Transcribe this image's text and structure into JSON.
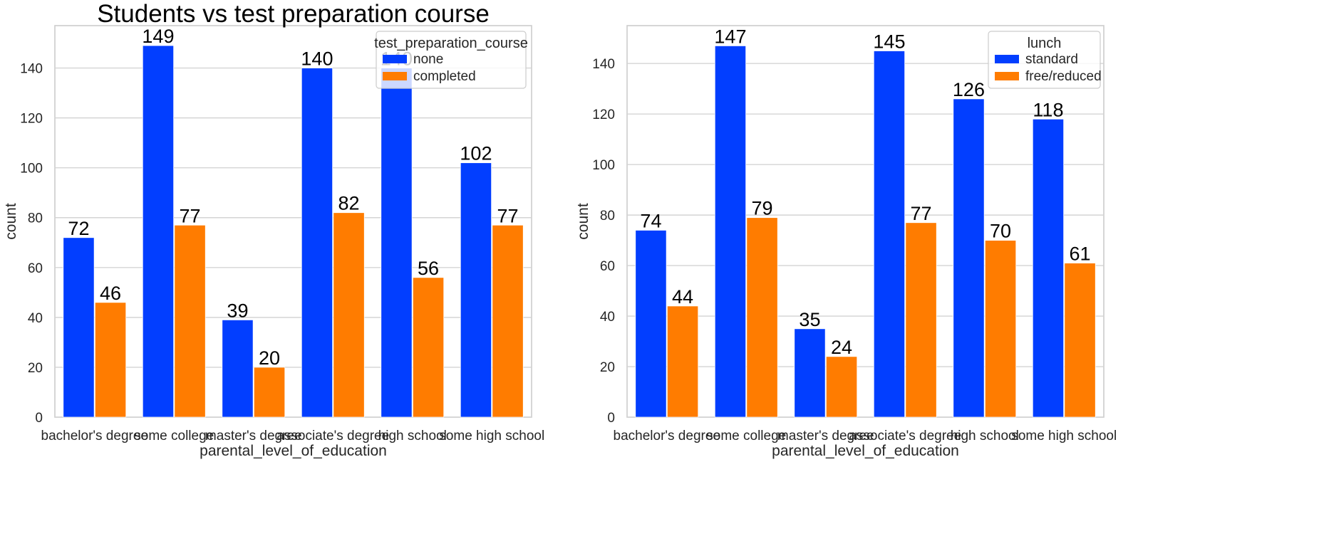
{
  "chart_data": [
    {
      "type": "bar",
      "title": "Students vs test preparation course",
      "xlabel": "parental_level_of_education",
      "ylabel": "count",
      "ylim": [
        0,
        157
      ],
      "yticks": [
        0,
        20,
        40,
        60,
        80,
        100,
        120,
        140
      ],
      "grid": true,
      "legend_title": "test_preparation_course",
      "legend_position": "top-right",
      "categories": [
        "bachelor's degree",
        "some college",
        "master's degree",
        "associate's degree",
        "high school",
        "some high school"
      ],
      "series": [
        {
          "name": "none",
          "color": "#023eff",
          "values": [
            72,
            149,
            39,
            140,
            140,
            102
          ]
        },
        {
          "name": "completed",
          "color": "#ff7c00",
          "values": [
            46,
            77,
            20,
            82,
            56,
            77
          ]
        }
      ]
    },
    {
      "type": "bar",
      "title": "",
      "xlabel": "parental_level_of_education",
      "ylabel": "count",
      "ylim": [
        0,
        155
      ],
      "yticks": [
        0,
        20,
        40,
        60,
        80,
        100,
        120,
        140
      ],
      "grid": true,
      "legend_title": "lunch",
      "legend_position": "top-right",
      "categories": [
        "bachelor's degree",
        "some college",
        "master's degree",
        "associate's degree",
        "high school",
        "some high school"
      ],
      "series": [
        {
          "name": "standard",
          "color": "#023eff",
          "values": [
            74,
            147,
            35,
            145,
            126,
            118
          ]
        },
        {
          "name": "free/reduced",
          "color": "#ff7c00",
          "values": [
            44,
            79,
            24,
            77,
            70,
            61
          ]
        }
      ]
    }
  ]
}
